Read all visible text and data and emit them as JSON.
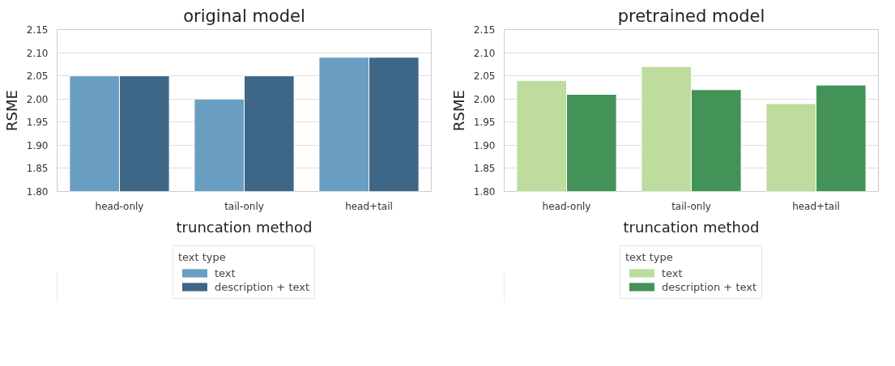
{
  "chart_data": [
    {
      "type": "bar",
      "title": "original model",
      "xlabel": "truncation method",
      "ylabel": "RSME",
      "legend_title": "text type",
      "categories": [
        "head-only",
        "tail-only",
        "head+tail"
      ],
      "series": [
        {
          "name": "text",
          "color": "#6a9ec2",
          "values": [
            2.05,
            2.0,
            2.09
          ]
        },
        {
          "name": "description + text",
          "color": "#3e6686",
          "values": [
            2.05,
            2.05,
            2.09
          ]
        }
      ],
      "ylim": [
        1.8,
        2.15
      ],
      "yticks": [
        {
          "value": 1.8,
          "label": "1.80"
        },
        {
          "value": 1.85,
          "label": "1.85"
        },
        {
          "value": 1.9,
          "label": "1.90"
        },
        {
          "value": 1.95,
          "label": "1.95"
        },
        {
          "value": 2.0,
          "label": "2.00"
        },
        {
          "value": 2.05,
          "label": "2.05"
        },
        {
          "value": 2.1,
          "label": "2.10"
        },
        {
          "value": 2.15,
          "label": "2.15"
        }
      ],
      "grid": "y",
      "legend": "bottom"
    },
    {
      "type": "bar",
      "title": "pretrained model",
      "xlabel": "truncation method",
      "ylabel": "RSME",
      "legend_title": "text type",
      "categories": [
        "head-only",
        "tail-only",
        "head+tail"
      ],
      "series": [
        {
          "name": "text",
          "color": "#bddc9d",
          "values": [
            2.04,
            2.07,
            1.99
          ]
        },
        {
          "name": "description + text",
          "color": "#439258",
          "values": [
            2.01,
            2.02,
            2.03
          ]
        }
      ],
      "ylim": [
        1.8,
        2.15
      ],
      "yticks": [
        {
          "value": 1.8,
          "label": "1.80"
        },
        {
          "value": 1.85,
          "label": "1.85"
        },
        {
          "value": 1.9,
          "label": "1.90"
        },
        {
          "value": 1.95,
          "label": "1.95"
        },
        {
          "value": 2.0,
          "label": "2.00"
        },
        {
          "value": 2.05,
          "label": "2.05"
        },
        {
          "value": 2.1,
          "label": "2.10"
        },
        {
          "value": 2.15,
          "label": "2.15"
        }
      ],
      "grid": "y",
      "legend": "bottom"
    }
  ]
}
